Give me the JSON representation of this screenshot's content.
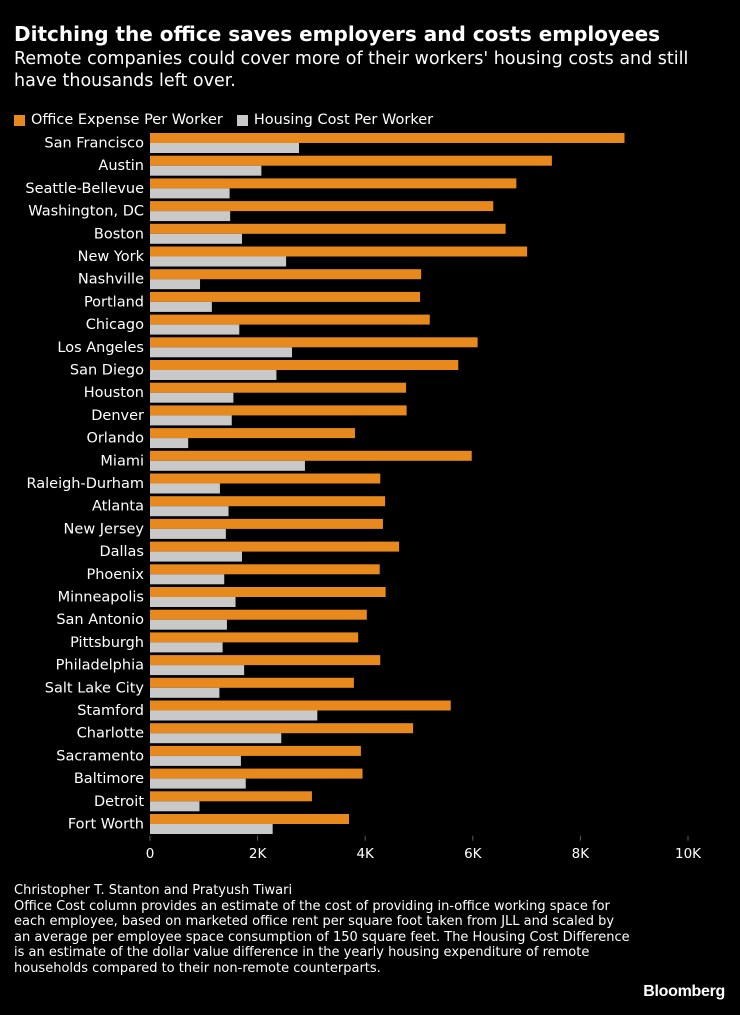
{
  "header": {
    "title": "Ditching the office saves employers and costs employees",
    "subtitle": "Remote companies could cover more of their workers' housing costs and still have thousands left over."
  },
  "footer": {
    "source": "Christopher T. Stanton and Pratyush Tiwari",
    "note": "Office Cost column provides an estimate of the cost of providing in-office working space for each employee, based on marketed office rent per square foot taken from JLL and scaled by an average per employee space consumption of 150 square feet. The Housing Cost Difference is an estimate of the dollar value difference in the yearly housing expenditure of remote households compared to their non-remote counterparts.",
    "brand": "Bloomberg"
  },
  "colors": {
    "background": "#000000",
    "office": "#e8891e",
    "housing": "#c9c9c9",
    "text": "#ffffff",
    "grid": "#5a5a5a"
  },
  "chart_data": {
    "type": "bar",
    "orientation": "horizontal",
    "title": "Ditching the office saves employers and costs employees",
    "xlabel": "",
    "ylabel": "",
    "xlim": [
      0,
      10000
    ],
    "xticks": [
      0,
      2000,
      4000,
      6000,
      8000,
      10000
    ],
    "xtick_labels": [
      "0",
      "2K",
      "4K",
      "6K",
      "8K",
      "10K"
    ],
    "legend_position": "top-left",
    "categories": [
      "San Francisco",
      "Austin",
      "Seattle-Bellevue",
      "Washington, DC",
      "Boston",
      "New York",
      "Nashville",
      "Portland",
      "Chicago",
      "Los Angeles",
      "San Diego",
      "Houston",
      "Denver",
      "Orlando",
      "Miami",
      "Raleigh-Durham",
      "Atlanta",
      "New Jersey",
      "Dallas",
      "Phoenix",
      "Minneapolis",
      "San Antonio",
      "Pittsburgh",
      "Philadelphia",
      "Salt Lake City",
      "Stamford",
      "Charlotte",
      "Sacramento",
      "Baltimore",
      "Detroit",
      "Fort Worth"
    ],
    "series": [
      {
        "name": "Office Expense Per Worker",
        "color": "#e8891e",
        "values": [
          8820,
          7470,
          6810,
          6380,
          6610,
          7010,
          5040,
          5020,
          5200,
          6090,
          5730,
          4760,
          4770,
          3810,
          5980,
          4280,
          4370,
          4330,
          4630,
          4270,
          4380,
          4030,
          3870,
          4280,
          3790,
          5590,
          4890,
          3920,
          3950,
          3010,
          3700
        ]
      },
      {
        "name": "Housing Cost Per Worker",
        "color": "#c9c9c9",
        "values": [
          2770,
          2070,
          1480,
          1490,
          1710,
          2530,
          930,
          1150,
          1660,
          2640,
          2350,
          1550,
          1520,
          710,
          2880,
          1300,
          1460,
          1410,
          1710,
          1380,
          1590,
          1430,
          1350,
          1750,
          1290,
          3110,
          2440,
          1690,
          1780,
          920,
          2280
        ]
      }
    ]
  }
}
